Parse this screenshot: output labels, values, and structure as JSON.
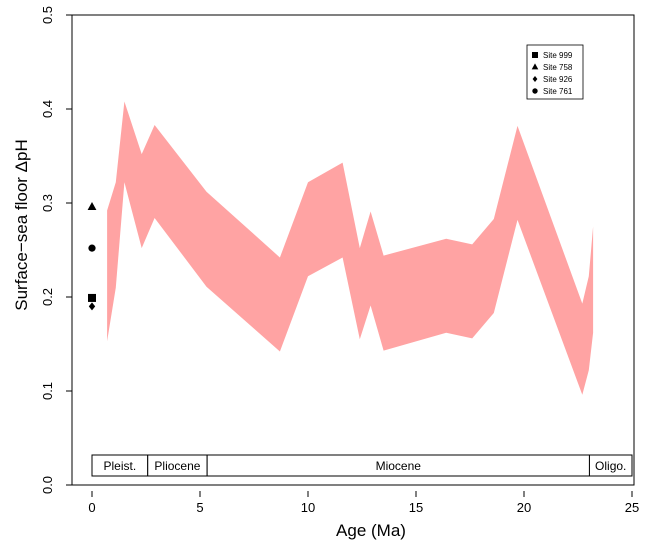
{
  "chart_data": {
    "type": "area",
    "xlabel": "Age (Ma)",
    "ylabel": "Surface−sea floor ΔpH",
    "xlim": [
      0,
      25
    ],
    "ylim": [
      0,
      0.5
    ],
    "x_ticks": [
      0,
      5,
      10,
      15,
      20,
      25
    ],
    "x_tick_labels": [
      "0",
      "5",
      "10",
      "15",
      "20",
      "25"
    ],
    "y_ticks": [
      0.0,
      0.1,
      0.2,
      0.3,
      0.4,
      0.5
    ],
    "y_tick_labels": [
      "0.0",
      "0.1",
      "0.2",
      "0.3",
      "0.4",
      "0.5"
    ],
    "band": {
      "color": "#ffa3a3",
      "x": [
        0.7,
        1.1,
        1.5,
        2.3,
        2.9,
        5.3,
        8.7,
        10.0,
        11.6,
        12.4,
        12.9,
        13.5,
        16.4,
        17.6,
        18.6,
        19.7,
        22.7,
        23.0,
        23.2
      ],
      "upper": [
        0.292,
        0.322,
        0.408,
        0.352,
        0.383,
        0.312,
        0.242,
        0.322,
        0.343,
        0.252,
        0.291,
        0.244,
        0.262,
        0.256,
        0.283,
        0.382,
        0.193,
        0.222,
        0.275
      ],
      "lower": [
        0.153,
        0.21,
        0.322,
        0.252,
        0.284,
        0.211,
        0.142,
        0.222,
        0.242,
        0.155,
        0.191,
        0.143,
        0.162,
        0.156,
        0.183,
        0.282,
        0.096,
        0.122,
        0.162
      ]
    },
    "points": [
      {
        "site": "Site 999",
        "marker": "square",
        "x": 0,
        "y": 0.199
      },
      {
        "site": "Site 758",
        "marker": "triangle",
        "x": 0,
        "y": 0.296
      },
      {
        "site": "Site 926",
        "marker": "diamond",
        "x": 0,
        "y": 0.19
      },
      {
        "site": "Site 761",
        "marker": "circle",
        "x": 0,
        "y": 0.252
      }
    ],
    "legend": {
      "position": "top-right",
      "entries": [
        {
          "label": "Site 999",
          "marker": "square"
        },
        {
          "label": "Site 758",
          "marker": "triangle"
        },
        {
          "label": "Site 926",
          "marker": "diamond"
        },
        {
          "label": "Site 761",
          "marker": "circle"
        }
      ]
    },
    "epochs": [
      {
        "label": "Pleist.",
        "start": 0,
        "end": 2.58
      },
      {
        "label": "Pliocene",
        "start": 2.58,
        "end": 5.33
      },
      {
        "label": "Miocene",
        "start": 5.33,
        "end": 23.03
      },
      {
        "label": "Oligo.",
        "start": 23.03,
        "end": 25
      }
    ],
    "grid": false
  }
}
